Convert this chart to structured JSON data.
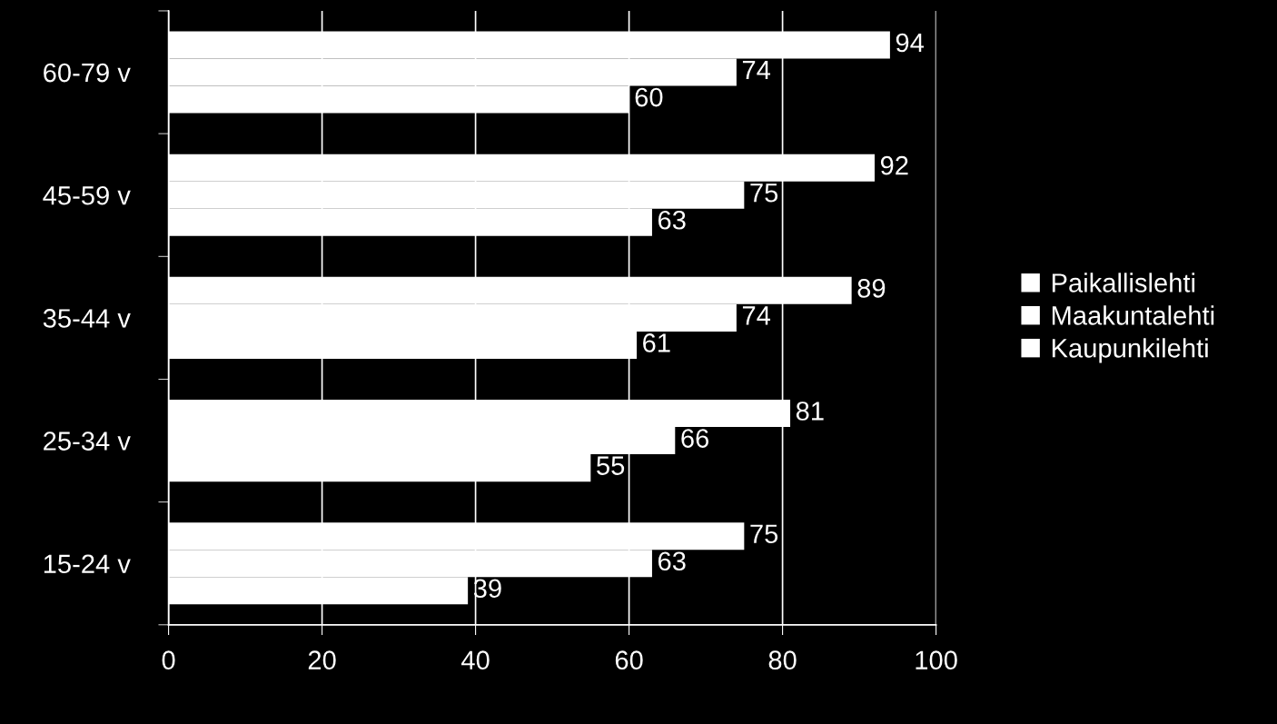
{
  "chart_data": {
    "type": "bar",
    "orientation": "horizontal",
    "categories": [
      "60-79 v",
      "45-59 v",
      "35-44 v",
      "25-34 v",
      "15-24 v"
    ],
    "series": [
      {
        "name": "Paikallislehti",
        "color": "#ffffff",
        "values": [
          94,
          92,
          89,
          81,
          75
        ]
      },
      {
        "name": "Maakuntalehti",
        "color": "#ffffff",
        "values": [
          74,
          75,
          74,
          66,
          63
        ]
      },
      {
        "name": "Kaupunkilehti",
        "color": "#ffffff",
        "values": [
          60,
          63,
          61,
          55,
          39
        ]
      }
    ],
    "xlim": [
      0,
      100
    ],
    "xticks": [
      0,
      20,
      40,
      60,
      80,
      100
    ],
    "grid": "x",
    "legend": "right",
    "data_labels": true
  }
}
